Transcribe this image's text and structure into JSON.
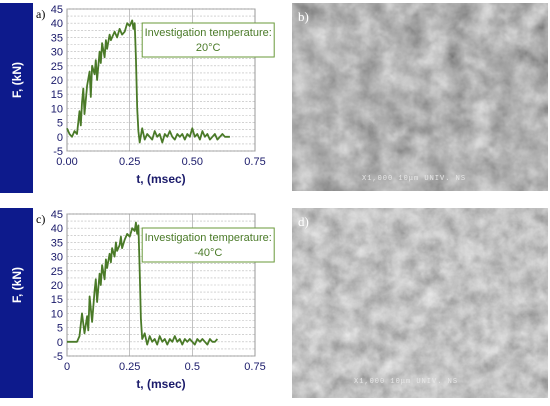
{
  "panels": [
    {
      "label": "a)",
      "annotation_line1": "Investigation temperature:",
      "annotation_line2": "20°C"
    },
    {
      "label": "c)",
      "annotation_line1": "Investigation temperature:",
      "annotation_line2": "-40°C"
    }
  ],
  "sem_panels": [
    {
      "label": "b)",
      "scale_text": "X1,000  10μm      UNIV. NS"
    },
    {
      "label": "d)",
      "scale_text": "X1,000  10μm      UNIV. NS"
    }
  ],
  "colors": {
    "line": "#4a7a28",
    "sidebar": "#0d1a8c",
    "annotation_border": "#6a9a3a",
    "annotation_text": "#4a7a28"
  },
  "chart_data": [
    {
      "type": "line",
      "title": "",
      "xlabel": "t, (msec)",
      "ylabel": "F, (kN)",
      "xlim": [
        0,
        0.75
      ],
      "ylim": [
        -5,
        45
      ],
      "x_ticks": [
        "0.00",
        "0.25",
        "0.50",
        "0.75"
      ],
      "y_ticks": [
        "-5",
        "0",
        "5",
        "10",
        "15",
        "20",
        "25",
        "30",
        "35",
        "40",
        "45"
      ],
      "grid": true,
      "series": [
        {
          "x": [
            0,
            0.01,
            0.02,
            0.03,
            0.04,
            0.05,
            0.055,
            0.06,
            0.065,
            0.07,
            0.08,
            0.09,
            0.095,
            0.1,
            0.11,
            0.115,
            0.12,
            0.13,
            0.135,
            0.14,
            0.15,
            0.155,
            0.16,
            0.17,
            0.175,
            0.18,
            0.19,
            0.2,
            0.21,
            0.22,
            0.23,
            0.24,
            0.25,
            0.26,
            0.265,
            0.27,
            0.275,
            0.28,
            0.285,
            0.29,
            0.3,
            0.31,
            0.32,
            0.33,
            0.34,
            0.35,
            0.36,
            0.37,
            0.38,
            0.39,
            0.4,
            0.41,
            0.42,
            0.43,
            0.44,
            0.45,
            0.46,
            0.47,
            0.48,
            0.49,
            0.5,
            0.51,
            0.52,
            0.53,
            0.54,
            0.55,
            0.56,
            0.57,
            0.58,
            0.59,
            0.6,
            0.61,
            0.62,
            0.63,
            0.64,
            0.65
          ],
          "values": [
            3,
            1,
            0,
            2,
            1,
            9,
            4,
            12,
            17,
            8,
            18,
            23,
            14,
            25,
            22,
            27,
            20,
            30,
            26,
            33,
            28,
            34,
            31,
            36,
            34,
            35,
            37,
            35,
            38,
            36,
            37,
            40,
            39,
            41,
            38,
            40,
            28,
            10,
            2,
            -2,
            3,
            -1,
            1,
            0,
            -1,
            2,
            0,
            1,
            -2,
            1,
            0,
            2,
            0,
            -1,
            1,
            0,
            1,
            -1,
            1,
            0,
            3,
            0,
            1,
            -1,
            2,
            0,
            1,
            -1,
            0,
            1,
            -1,
            0,
            1,
            0,
            0,
            0
          ]
        }
      ]
    },
    {
      "type": "line",
      "title": "",
      "xlabel": "t, (msec)",
      "ylabel": "F, (kN)",
      "xlim": [
        0,
        0.75
      ],
      "ylim": [
        -5,
        45
      ],
      "x_ticks": [
        "0",
        "0.25",
        "0.5",
        "0.75"
      ],
      "y_ticks": [
        "-5",
        "0",
        "5",
        "10",
        "15",
        "20",
        "25",
        "30",
        "35",
        "40",
        "45"
      ],
      "grid": true,
      "series": [
        {
          "x": [
            0,
            0.02,
            0.04,
            0.05,
            0.06,
            0.07,
            0.08,
            0.085,
            0.09,
            0.1,
            0.11,
            0.115,
            0.12,
            0.13,
            0.135,
            0.14,
            0.15,
            0.155,
            0.16,
            0.17,
            0.175,
            0.18,
            0.19,
            0.195,
            0.2,
            0.21,
            0.215,
            0.22,
            0.23,
            0.24,
            0.25,
            0.26,
            0.27,
            0.275,
            0.28,
            0.285,
            0.29,
            0.295,
            0.3,
            0.31,
            0.32,
            0.33,
            0.34,
            0.35,
            0.36,
            0.37,
            0.38,
            0.39,
            0.4,
            0.41,
            0.42,
            0.43,
            0.44,
            0.45,
            0.46,
            0.47,
            0.48,
            0.49,
            0.5,
            0.51,
            0.52,
            0.53,
            0.54,
            0.55,
            0.56,
            0.57,
            0.58,
            0.59,
            0.6
          ],
          "values": [
            0,
            0,
            0,
            2,
            10,
            3,
            9,
            4,
            16,
            7,
            18,
            22,
            14,
            24,
            20,
            27,
            22,
            29,
            26,
            31,
            28,
            33,
            30,
            35,
            32,
            34,
            37,
            33,
            36,
            38,
            37,
            40,
            39,
            42,
            38,
            41,
            25,
            8,
            1,
            3,
            -1,
            2,
            0,
            1,
            -1,
            2,
            0,
            1,
            -1,
            1,
            0,
            2,
            0,
            1,
            -1,
            1,
            0,
            1,
            0,
            -1,
            1,
            0,
            1,
            0,
            -1,
            1,
            0,
            0,
            1
          ]
        }
      ]
    }
  ]
}
